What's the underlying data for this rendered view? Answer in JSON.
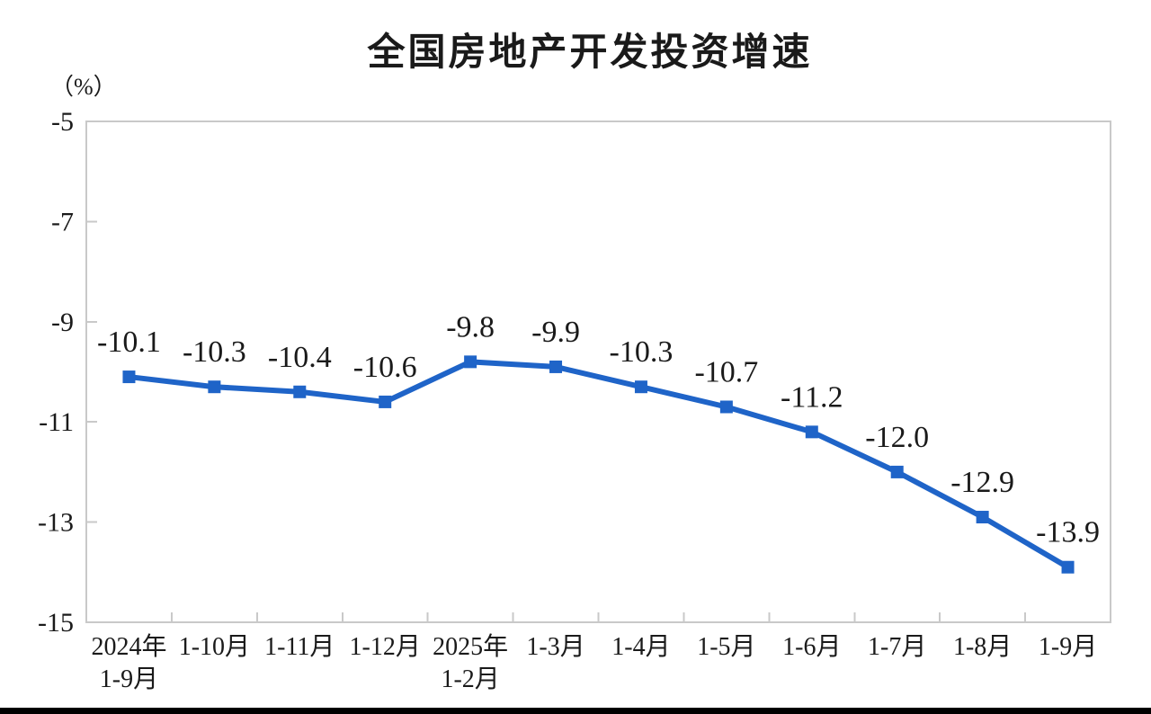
{
  "page": {
    "background": "#ffffff",
    "footer_bar_color": "#000000"
  },
  "chart_data": {
    "type": "line",
    "title": "全国房地产开发投资增速",
    "unit_label": "（%）",
    "series_name": "全国房地产开发投资增速",
    "categories": [
      "2024年\n1-9月",
      "1-10月",
      "1-11月",
      "1-12月",
      "2025年\n1-2月",
      "1-3月",
      "1-4月",
      "1-5月",
      "1-6月",
      "1-7月",
      "1-8月",
      "1-9月"
    ],
    "values": [
      -10.1,
      -10.3,
      -10.4,
      -10.6,
      -9.8,
      -9.9,
      -10.3,
      -10.7,
      -11.2,
      -12.0,
      -12.9,
      -13.9
    ],
    "data_labels": [
      "-10.1",
      "-10.3",
      "-10.4",
      "-10.6",
      "-9.8",
      "-9.9",
      "-10.3",
      "-10.7",
      "-11.2",
      "-12.0",
      "-12.9",
      "-13.9"
    ],
    "y_ticks": [
      -5,
      -7,
      -9,
      -11,
      -13,
      -15
    ],
    "y_tick_labels": [
      "-5",
      "-7",
      "-9",
      "-11",
      "-13",
      "-15"
    ],
    "ylim": [
      -15,
      -5
    ],
    "grid": false,
    "legend_position": "none",
    "line_color": "#1F64C8",
    "marker_shape": "square",
    "axis_frame_color": "#C9C9C9",
    "text_color": "#1A1A1A"
  }
}
